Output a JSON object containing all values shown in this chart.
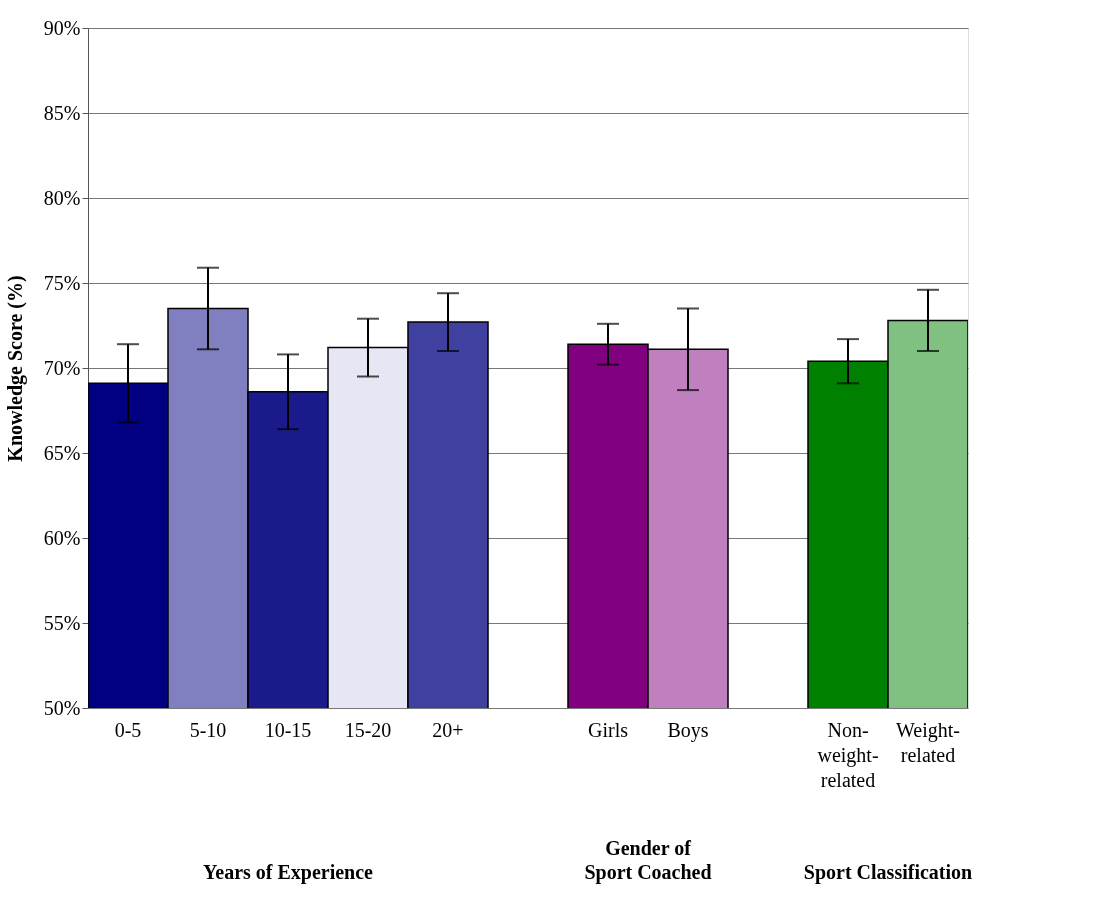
{
  "chart_data": {
    "type": "bar",
    "categories": [
      "0-5",
      "5-10",
      "10-15",
      "15-20",
      "20+",
      null,
      "Girls",
      "Boys",
      null,
      "Non-weight-related",
      "Weight-related"
    ],
    "values": [
      69.1,
      73.5,
      68.6,
      71.2,
      72.7,
      null,
      71.4,
      71.1,
      null,
      70.4,
      72.8
    ],
    "errors": [
      2.3,
      2.4,
      2.2,
      1.7,
      1.7,
      null,
      1.2,
      2.4,
      null,
      1.3,
      1.8
    ],
    "colors": [
      "#000080",
      "#8080c0",
      "#1a1a8c",
      "#e6e6f5",
      "#4040a0",
      null,
      "#800080",
      "#c080c0",
      null,
      "#008000",
      "#80c080"
    ],
    "ylabel": "Knowledge Score (%)",
    "ylim": [
      50,
      90
    ],
    "yticks": [
      {
        "value": 50,
        "label": "50%"
      },
      {
        "value": 55,
        "label": "55%"
      },
      {
        "value": 60,
        "label": "60%"
      },
      {
        "value": 65,
        "label": "65%"
      },
      {
        "value": 70,
        "label": "70%"
      },
      {
        "value": 75,
        "label": "75%"
      },
      {
        "value": 80,
        "label": "80%"
      },
      {
        "value": 85,
        "label": "85%"
      },
      {
        "value": 90,
        "label": "90%"
      }
    ],
    "grid": "y",
    "legend": false,
    "annotations": [
      "Years of Experience",
      "Gender of Sport Coached",
      "Sport Classification"
    ]
  }
}
